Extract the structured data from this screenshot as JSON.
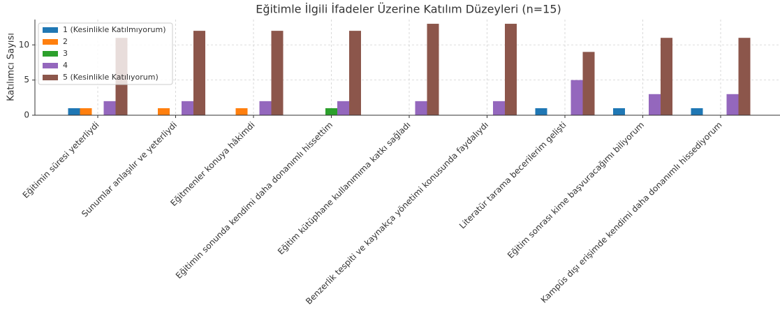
{
  "chart_data": {
    "type": "bar",
    "title": "Eğitimle İlgili İfadeler Üzerine Katılım Düzeyleri (n=15)",
    "y_label": "Katılımcı Sayısı",
    "categories": [
      "Eğitimin süresi yeterliydi",
      "Sunumlar anlaşılır ve yeterliydi",
      "Eğitmenler konuya hâkimdi",
      "Eğitimin sonunda kendimi daha donanımlı hissettim",
      "Eğitim kütüphane kullanımıma katkı sağladı",
      "Benzerlik tespiti ve kaynakça yönetimi konusunda faydalıydı",
      "Literatür tarama becerilerim gelişti",
      "Eğitim sonrası kime başvuracağımı biliyorum",
      "Kampüs dışı erişimde kendimi daha donanımlı hissediyorum"
    ],
    "series": [
      {
        "name": "1 (Kesinlikle Katılmıyorum)",
        "color": "#1f77b4",
        "values": [
          1,
          0,
          0,
          0,
          0,
          0,
          1,
          1,
          1
        ]
      },
      {
        "name": "2",
        "color": "#ff7f0e",
        "values": [
          1,
          1,
          1,
          0,
          0,
          0,
          0,
          0,
          0
        ]
      },
      {
        "name": "3",
        "color": "#2ca02c",
        "values": [
          0,
          0,
          0,
          1,
          0,
          0,
          0,
          0,
          0
        ]
      },
      {
        "name": "4",
        "color": "#9467bd",
        "values": [
          2,
          2,
          2,
          2,
          2,
          2,
          5,
          3,
          3
        ]
      },
      {
        "name": "5 (Kesinlikle Katılıyorum)",
        "color": "#8c564b",
        "values": [
          11,
          12,
          12,
          12,
          13,
          13,
          9,
          11,
          11
        ]
      }
    ],
    "ylim": [
      0,
      13.6
    ],
    "yticks": [
      0,
      5,
      10
    ],
    "grid": true,
    "legend": "upper left"
  }
}
